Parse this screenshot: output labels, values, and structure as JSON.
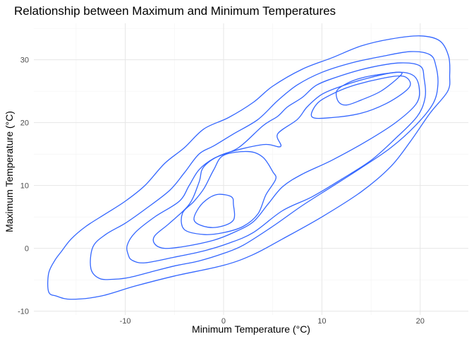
{
  "chart_data": {
    "type": "contour",
    "title": "Relationship between Maximum and Minimum Temperatures",
    "xlabel": "Minimum Temperature (°C)",
    "ylabel": "Maximum Temperature (°C)",
    "xlim": [
      -19.3,
      24.9
    ],
    "ylim": [
      -10.6,
      35.8
    ],
    "x_ticks": [
      -10,
      0,
      10,
      20
    ],
    "y_ticks": [
      -10,
      0,
      10,
      20,
      30
    ],
    "grid": true,
    "line_color": "#3366ff",
    "contours": [
      {
        "points": [
          [
            -17.8,
            -6.9
          ],
          [
            -17.0,
            -7.6
          ],
          [
            -15.5,
            -8.1
          ],
          [
            -12.5,
            -7.6
          ],
          [
            -9.0,
            -6.0
          ],
          [
            -5.0,
            -4.4
          ],
          [
            0.0,
            -2.7
          ],
          [
            3.0,
            -1.0
          ],
          [
            6.0,
            1.5
          ],
          [
            10.0,
            5.0
          ],
          [
            14.0,
            9.0
          ],
          [
            17.0,
            13.0
          ],
          [
            19.0,
            17.0
          ],
          [
            21.0,
            21.5
          ],
          [
            22.8,
            25.0
          ],
          [
            23.0,
            27.5
          ],
          [
            22.9,
            30.5
          ],
          [
            22.0,
            33.0
          ],
          [
            20.0,
            33.8
          ],
          [
            17.0,
            33.3
          ],
          [
            14.0,
            32.2
          ],
          [
            11.0,
            30.3
          ],
          [
            8.0,
            28.5
          ],
          [
            5.0,
            25.8
          ],
          [
            3.0,
            23.2
          ],
          [
            0.5,
            20.8
          ],
          [
            -2.0,
            19.0
          ],
          [
            -4.0,
            16.0
          ],
          [
            -6.0,
            13.5
          ],
          [
            -8.0,
            10.0
          ],
          [
            -10.0,
            7.5
          ],
          [
            -12.0,
            5.5
          ],
          [
            -14.0,
            3.5
          ],
          [
            -15.5,
            1.5
          ],
          [
            -16.5,
            -0.5
          ],
          [
            -17.2,
            -2.0
          ],
          [
            -17.8,
            -4.0
          ],
          [
            -17.8,
            -6.9
          ]
        ]
      },
      {
        "points": [
          [
            -13.5,
            -3.2
          ],
          [
            -12.6,
            -4.8
          ],
          [
            -11.0,
            -4.9
          ],
          [
            -9.5,
            -4.6
          ],
          [
            -7.5,
            -3.8
          ],
          [
            -5.0,
            -2.8
          ],
          [
            -2.5,
            -2.0
          ],
          [
            0.0,
            -0.8
          ],
          [
            2.0,
            0.5
          ],
          [
            5.0,
            3.5
          ],
          [
            8.0,
            6.8
          ],
          [
            11.0,
            9.8
          ],
          [
            14.0,
            12.8
          ],
          [
            17.0,
            16.0
          ],
          [
            19.5,
            19.5
          ],
          [
            21.3,
            23.0
          ],
          [
            21.8,
            26.0
          ],
          [
            21.6,
            29.0
          ],
          [
            21.0,
            30.8
          ],
          [
            19.0,
            31.3
          ],
          [
            16.0,
            30.5
          ],
          [
            13.0,
            29.5
          ],
          [
            10.0,
            28.0
          ],
          [
            7.5,
            26.0
          ],
          [
            5.5,
            23.5
          ],
          [
            3.5,
            20.5
          ],
          [
            1.0,
            18.2
          ],
          [
            -1.0,
            16.3
          ],
          [
            -2.5,
            15.0
          ],
          [
            -4.0,
            12.0
          ],
          [
            -5.5,
            9.2
          ],
          [
            -8.0,
            6.2
          ],
          [
            -10.0,
            4.0
          ],
          [
            -12.0,
            2.2
          ],
          [
            -13.3,
            0.2
          ],
          [
            -13.5,
            -3.2
          ]
        ]
      },
      {
        "points": [
          [
            -9.7,
            -1.0
          ],
          [
            -9.3,
            -1.9
          ],
          [
            -8.0,
            -2.3
          ],
          [
            -5.0,
            -1.4
          ],
          [
            -2.0,
            -0.4
          ],
          [
            0.5,
            0.8
          ],
          [
            3.0,
            2.5
          ],
          [
            6.0,
            6.0
          ],
          [
            9.0,
            8.2
          ],
          [
            12.0,
            11.0
          ],
          [
            15.0,
            14.0
          ],
          [
            17.5,
            17.5
          ],
          [
            19.7,
            21.0
          ],
          [
            20.5,
            24.0
          ],
          [
            20.4,
            27.0
          ],
          [
            20.0,
            29.0
          ],
          [
            18.0,
            29.5
          ],
          [
            15.0,
            28.8
          ],
          [
            12.0,
            27.5
          ],
          [
            9.5,
            26.0
          ],
          [
            8.0,
            24.0
          ],
          [
            6.5,
            22.5
          ],
          [
            5.5,
            21.0
          ],
          [
            4.0,
            19.5
          ],
          [
            1.5,
            16.0
          ],
          [
            -1.0,
            14.3
          ],
          [
            -2.5,
            12.5
          ],
          [
            -3.5,
            10.0
          ],
          [
            -4.5,
            7.5
          ],
          [
            -7.0,
            5.0
          ],
          [
            -9.0,
            2.5
          ],
          [
            -9.8,
            0.5
          ],
          [
            -9.7,
            -1.0
          ]
        ]
      },
      {
        "points": [
          [
            -7.0,
            0.7
          ],
          [
            -6.0,
            0.0
          ],
          [
            -4.0,
            0.3
          ],
          [
            -1.0,
            1.3
          ],
          [
            1.0,
            2.5
          ],
          [
            3.0,
            4.2
          ],
          [
            4.5,
            7.0
          ],
          [
            6.0,
            9.8
          ],
          [
            8.0,
            11.8
          ],
          [
            11.0,
            14.0
          ],
          [
            14.5,
            17.0
          ],
          [
            17.5,
            20.0
          ],
          [
            19.6,
            23.0
          ],
          [
            19.9,
            25.5
          ],
          [
            19.3,
            27.5
          ],
          [
            17.5,
            28.0
          ],
          [
            14.5,
            27.0
          ],
          [
            12.0,
            25.8
          ],
          [
            10.0,
            24.5
          ],
          [
            8.5,
            22.5
          ],
          [
            7.5,
            20.5
          ],
          [
            5.5,
            18.2
          ],
          [
            5.8,
            16.2
          ],
          [
            4.0,
            16.5
          ],
          [
            0.0,
            15.0
          ],
          [
            -2.0,
            13.0
          ],
          [
            -2.5,
            10.5
          ],
          [
            -3.5,
            7.0
          ],
          [
            -5.5,
            4.0
          ],
          [
            -7.0,
            2.0
          ],
          [
            -7.0,
            0.7
          ]
        ]
      },
      {
        "points": [
          [
            -4.0,
            3.0
          ],
          [
            -2.0,
            2.2
          ],
          [
            0.0,
            2.5
          ],
          [
            2.0,
            3.5
          ],
          [
            3.5,
            5.5
          ],
          [
            4.3,
            8.5
          ],
          [
            5.3,
            11.0
          ],
          [
            5.0,
            12.2
          ],
          [
            4.0,
            14.5
          ],
          [
            2.5,
            15.4
          ],
          [
            0.0,
            14.8
          ],
          [
            -1.0,
            12.5
          ],
          [
            -2.0,
            9.5
          ],
          [
            -3.0,
            7.5
          ],
          [
            -4.2,
            5.5
          ],
          [
            -4.0,
            3.0
          ]
        ]
      },
      {
        "points": [
          [
            -3.0,
            4.5
          ],
          [
            -2.0,
            3.5
          ],
          [
            -0.5,
            3.4
          ],
          [
            1.0,
            4.5
          ],
          [
            1.0,
            7.0
          ],
          [
            0.8,
            8.2
          ],
          [
            -0.5,
            8.6
          ],
          [
            -1.5,
            8.0
          ],
          [
            -2.5,
            6.5
          ],
          [
            -3.0,
            4.5
          ]
        ]
      },
      {
        "points": [
          [
            9.0,
            20.9
          ],
          [
            11.0,
            20.8
          ],
          [
            14.0,
            21.5
          ],
          [
            16.5,
            23.0
          ],
          [
            18.5,
            25.0
          ],
          [
            19.0,
            26.3
          ],
          [
            18.2,
            27.4
          ],
          [
            16.0,
            27.0
          ],
          [
            13.0,
            25.8
          ],
          [
            11.0,
            24.5
          ],
          [
            9.5,
            23.0
          ],
          [
            9.0,
            20.9
          ]
        ]
      },
      {
        "points": [
          [
            11.7,
            23.3
          ],
          [
            12.5,
            22.8
          ],
          [
            14.0,
            23.6
          ],
          [
            16.0,
            25.0
          ],
          [
            17.8,
            27.2
          ],
          [
            18.0,
            28.0
          ],
          [
            16.0,
            27.7
          ],
          [
            14.0,
            27.1
          ],
          [
            12.5,
            26.2
          ],
          [
            11.5,
            25.0
          ],
          [
            11.7,
            23.3
          ]
        ]
      }
    ]
  }
}
